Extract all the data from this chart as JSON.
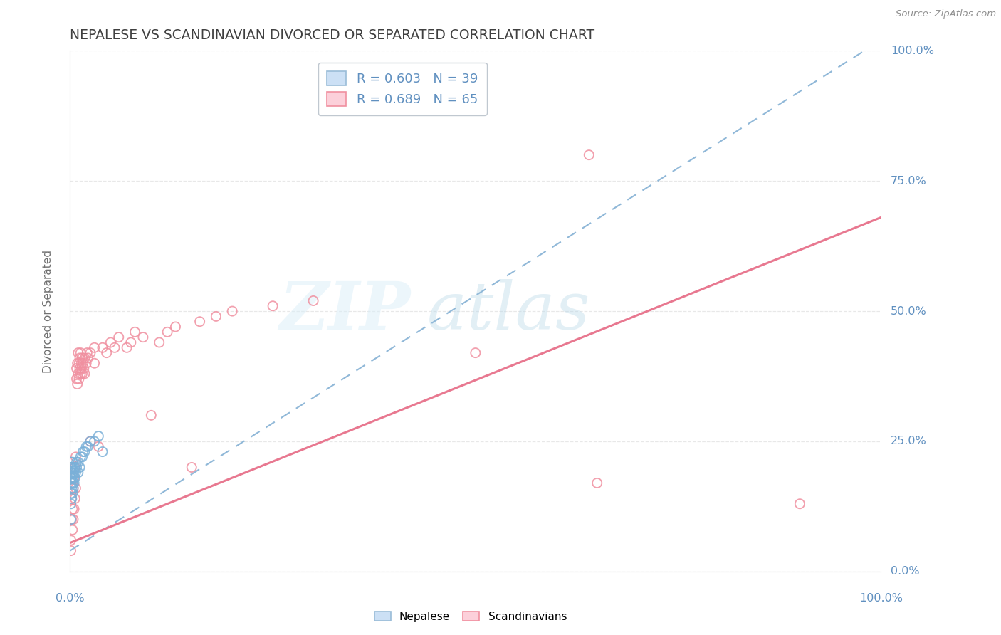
{
  "title": "NEPALESE VS SCANDINAVIAN DIVORCED OR SEPARATED CORRELATION CHART",
  "source": "Source: ZipAtlas.com",
  "ylabel": "Divorced or Separated",
  "watermark_zip": "ZIP",
  "watermark_atlas": "atlas",
  "nepalese_color": "#7ab0d8",
  "nepalese_line_color": "#90b8d8",
  "scandinavian_color": "#f090a0",
  "scandinavian_line_color": "#e87890",
  "legend_label_blue": "R = 0.603   N = 39",
  "legend_label_pink": "R = 0.689   N = 65",
  "tick_color": "#6090c0",
  "title_color": "#404040",
  "source_color": "#909090",
  "grid_color": "#e8e8e8",
  "background_color": "#ffffff",
  "nepalese_points": [
    [
      0.001,
      0.13
    ],
    [
      0.001,
      0.15
    ],
    [
      0.001,
      0.17
    ],
    [
      0.001,
      0.18
    ],
    [
      0.001,
      0.19
    ],
    [
      0.001,
      0.2
    ],
    [
      0.001,
      0.21
    ],
    [
      0.001,
      0.1
    ],
    [
      0.002,
      0.14
    ],
    [
      0.002,
      0.16
    ],
    [
      0.002,
      0.18
    ],
    [
      0.002,
      0.2
    ],
    [
      0.003,
      0.15
    ],
    [
      0.003,
      0.17
    ],
    [
      0.003,
      0.19
    ],
    [
      0.003,
      0.21
    ],
    [
      0.004,
      0.16
    ],
    [
      0.004,
      0.18
    ],
    [
      0.004,
      0.2
    ],
    [
      0.005,
      0.17
    ],
    [
      0.005,
      0.19
    ],
    [
      0.006,
      0.18
    ],
    [
      0.006,
      0.2
    ],
    [
      0.007,
      0.19
    ],
    [
      0.008,
      0.2
    ],
    [
      0.008,
      0.21
    ],
    [
      0.01,
      0.19
    ],
    [
      0.01,
      0.21
    ],
    [
      0.012,
      0.2
    ],
    [
      0.013,
      0.22
    ],
    [
      0.015,
      0.22
    ],
    [
      0.016,
      0.23
    ],
    [
      0.018,
      0.23
    ],
    [
      0.02,
      0.24
    ],
    [
      0.022,
      0.24
    ],
    [
      0.025,
      0.25
    ],
    [
      0.03,
      0.25
    ],
    [
      0.035,
      0.26
    ],
    [
      0.04,
      0.23
    ]
  ],
  "scandinavian_points": [
    [
      0.001,
      0.04
    ],
    [
      0.001,
      0.06
    ],
    [
      0.002,
      0.1
    ],
    [
      0.002,
      0.14
    ],
    [
      0.003,
      0.08
    ],
    [
      0.003,
      0.12
    ],
    [
      0.004,
      0.1
    ],
    [
      0.004,
      0.16
    ],
    [
      0.005,
      0.12
    ],
    [
      0.005,
      0.18
    ],
    [
      0.006,
      0.14
    ],
    [
      0.006,
      0.2
    ],
    [
      0.007,
      0.16
    ],
    [
      0.007,
      0.22
    ],
    [
      0.008,
      0.37
    ],
    [
      0.008,
      0.39
    ],
    [
      0.009,
      0.36
    ],
    [
      0.009,
      0.4
    ],
    [
      0.01,
      0.38
    ],
    [
      0.01,
      0.42
    ],
    [
      0.011,
      0.37
    ],
    [
      0.011,
      0.4
    ],
    [
      0.012,
      0.39
    ],
    [
      0.012,
      0.41
    ],
    [
      0.013,
      0.38
    ],
    [
      0.013,
      0.42
    ],
    [
      0.014,
      0.39
    ],
    [
      0.014,
      0.4
    ],
    [
      0.015,
      0.38
    ],
    [
      0.015,
      0.41
    ],
    [
      0.016,
      0.4
    ],
    [
      0.017,
      0.39
    ],
    [
      0.018,
      0.38
    ],
    [
      0.018,
      0.41
    ],
    [
      0.02,
      0.4
    ],
    [
      0.021,
      0.42
    ],
    [
      0.022,
      0.41
    ],
    [
      0.025,
      0.25
    ],
    [
      0.025,
      0.42
    ],
    [
      0.03,
      0.4
    ],
    [
      0.03,
      0.43
    ],
    [
      0.035,
      0.24
    ],
    [
      0.04,
      0.43
    ],
    [
      0.045,
      0.42
    ],
    [
      0.05,
      0.44
    ],
    [
      0.055,
      0.43
    ],
    [
      0.06,
      0.45
    ],
    [
      0.07,
      0.43
    ],
    [
      0.075,
      0.44
    ],
    [
      0.08,
      0.46
    ],
    [
      0.09,
      0.45
    ],
    [
      0.1,
      0.3
    ],
    [
      0.11,
      0.44
    ],
    [
      0.12,
      0.46
    ],
    [
      0.13,
      0.47
    ],
    [
      0.15,
      0.2
    ],
    [
      0.16,
      0.48
    ],
    [
      0.18,
      0.49
    ],
    [
      0.2,
      0.5
    ],
    [
      0.25,
      0.51
    ],
    [
      0.3,
      0.52
    ],
    [
      0.5,
      0.42
    ],
    [
      0.64,
      0.8
    ],
    [
      0.65,
      0.17
    ],
    [
      0.9,
      0.13
    ]
  ],
  "nepalese_line": {
    "x0": 0.0,
    "y0": 0.04,
    "x1": 1.0,
    "y1": 1.02
  },
  "scandinavian_line": {
    "x0": 0.0,
    "y0": 0.055,
    "x1": 1.0,
    "y1": 0.68
  },
  "xlim": [
    0.0,
    1.0
  ],
  "ylim": [
    0.0,
    1.0
  ],
  "xtick_positions": [
    0,
    0.25,
    0.5,
    0.75,
    1.0
  ],
  "ytick_positions": [
    0,
    0.25,
    0.5,
    0.75,
    1.0
  ],
  "right_tick_labels": [
    "0.0%",
    "25.0%",
    "50.0%",
    "75.0%",
    "100.0%"
  ],
  "bottom_tick_label_left": "0.0%",
  "bottom_tick_label_right": "100.0%"
}
